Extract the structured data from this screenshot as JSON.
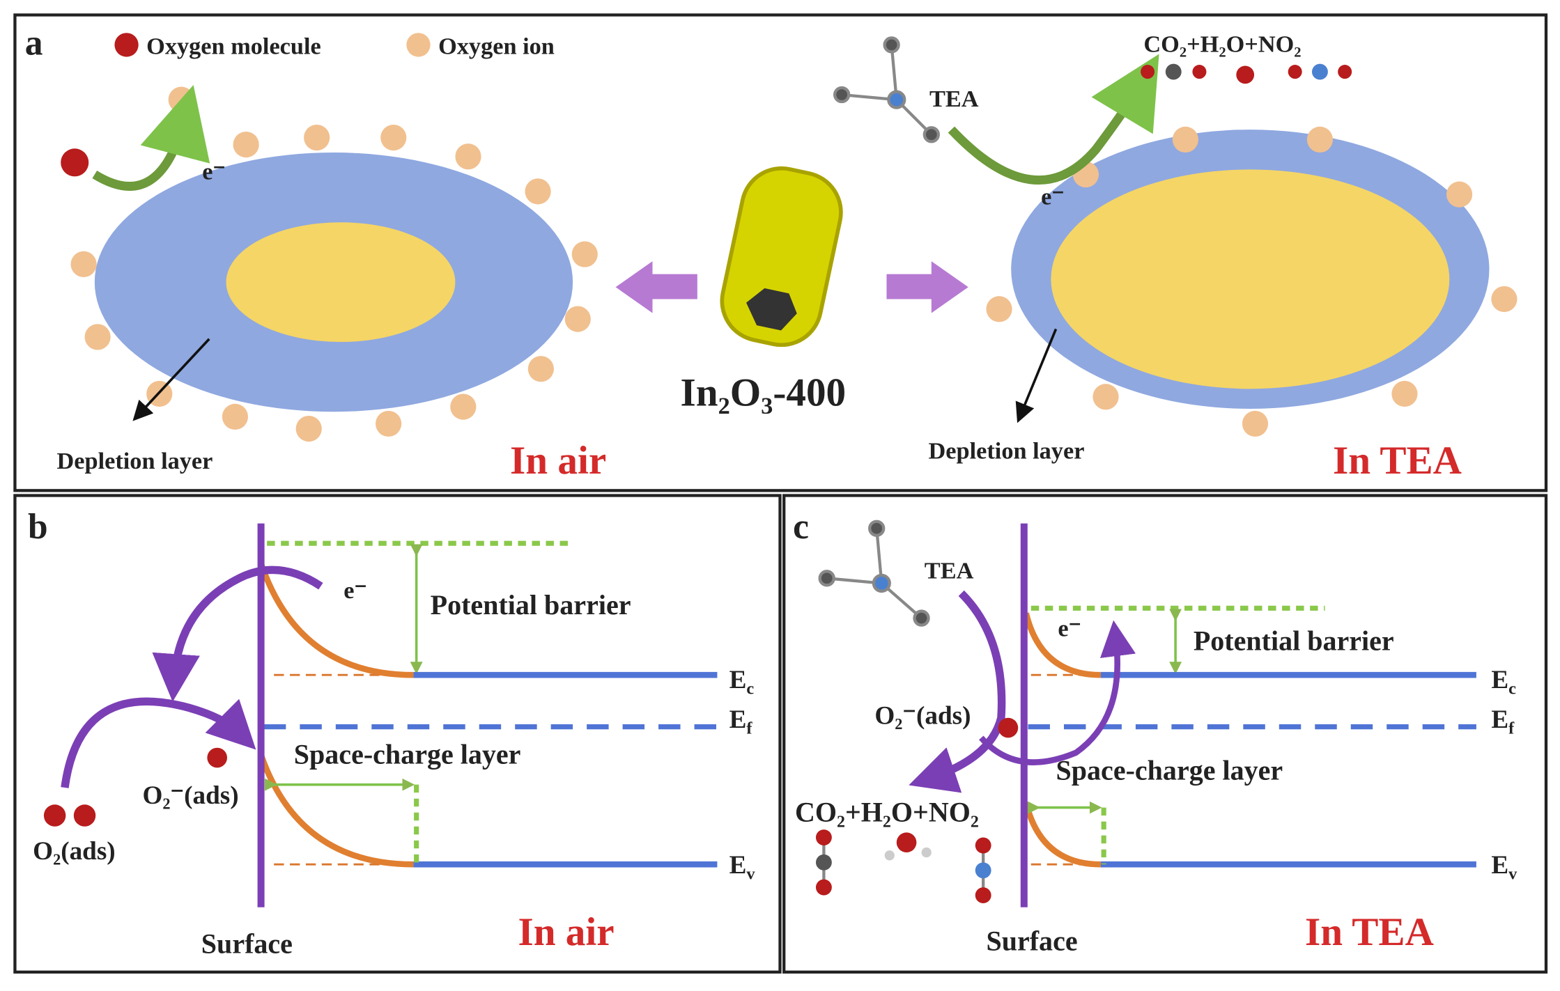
{
  "panel_a": {
    "label": "a",
    "legend": [
      "Oxygen molecule",
      "Oxygen ion"
    ],
    "center_label": "In₂O₃-400",
    "left": {
      "electron": "e⁻",
      "depletion": "Depletion layer",
      "condition": "In air"
    },
    "right": {
      "molecule": "TEA",
      "products": "CO₂+H₂O+NO₂",
      "electron": "e⁻",
      "depletion": "Depletion layer",
      "condition": "In TEA"
    }
  },
  "panel_b": {
    "label": "b",
    "electron": "e⁻",
    "barrier": "Potential barrier",
    "space_charge": "Space-charge layer",
    "o2_minus": "O₂⁻(ads)",
    "o2_ads": "O₂(ads)",
    "surface": "Surface",
    "condition": "In air",
    "levels": [
      {
        "base": "E",
        "sub": "c"
      },
      {
        "base": "E",
        "sub": "f"
      },
      {
        "base": "E",
        "sub": "v"
      }
    ]
  },
  "panel_c": {
    "label": "c",
    "molecule": "TEA",
    "electron": "e⁻",
    "barrier": "Potential barrier",
    "o2_minus": "O₂⁻(ads)",
    "space_charge": "Space-charge layer",
    "products": "CO₂+H₂O+NO₂",
    "surface": "Surface",
    "condition": "In TEA",
    "levels": [
      {
        "base": "E",
        "sub": "c"
      },
      {
        "base": "E",
        "sub": "f"
      },
      {
        "base": "E",
        "sub": "v"
      }
    ]
  }
}
